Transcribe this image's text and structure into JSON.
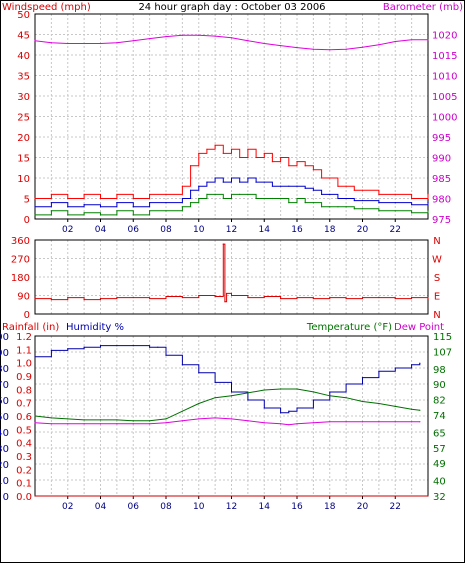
{
  "title": "24 hour graph day : October 03 2006",
  "colors": {
    "windspeed": "#ff0000",
    "gust": "#ff0000",
    "wind_avg": "#0000cc",
    "wind_low": "#008000",
    "barometer": "#e000e0",
    "direction": "#dd0000",
    "humidity": "#0000aa",
    "temperature": "#007000",
    "dewpoint": "#e000e0",
    "rainfall": "#cc0000",
    "grid": "#c8c8c8",
    "axis": "#000000"
  },
  "chart_data": [
    {
      "type": "line",
      "panel": "wind-barometer",
      "left_axis_label": "Windspeed (mph)",
      "right_axis_label": "Barometer (mb)",
      "ylim_left": [
        0,
        50
      ],
      "yticks_left": [
        "0",
        "5",
        "10",
        "15",
        "20",
        "25",
        "30",
        "35",
        "40",
        "45",
        "50"
      ],
      "ylim_right": [
        975,
        1025
      ],
      "yticks_right": [
        "975",
        "980",
        "985",
        "990",
        "995",
        "1000",
        "1005",
        "1010",
        "1015",
        "1020"
      ],
      "xlim": [
        0,
        24
      ],
      "xticks": [
        "02",
        "04",
        "06",
        "08",
        "10",
        "12",
        "14",
        "16",
        "18",
        "20",
        "22"
      ],
      "grid": true,
      "series": [
        {
          "key": "gust",
          "axis": "left",
          "color_key": "windspeed",
          "x": [
            0,
            1,
            2,
            3,
            4,
            5,
            6,
            7,
            8,
            9,
            9.5,
            10,
            10.5,
            11,
            11.5,
            12,
            12.5,
            13,
            13.5,
            14,
            14.5,
            15,
            15.5,
            16,
            16.5,
            17,
            17.5,
            18,
            18.5,
            19,
            19.5,
            20,
            21,
            22,
            23,
            24
          ],
          "values": [
            5,
            6,
            5,
            6,
            5,
            6,
            5,
            6,
            6,
            8,
            13,
            16,
            17,
            18,
            16,
            17,
            15,
            17,
            15,
            16,
            14,
            15,
            13,
            14,
            13,
            12,
            10,
            10,
            8,
            8,
            7,
            7,
            6,
            6,
            5,
            6
          ]
        },
        {
          "key": "avg",
          "axis": "left",
          "color_key": "wind_avg",
          "x": [
            0,
            1,
            2,
            3,
            4,
            5,
            6,
            7,
            8,
            9,
            9.5,
            10,
            10.5,
            11,
            11.5,
            12,
            12.5,
            13,
            13.5,
            14,
            14.5,
            15,
            15.5,
            16,
            16.5,
            17,
            17.5,
            18,
            18.5,
            19,
            19.5,
            20,
            21,
            22,
            23,
            24
          ],
          "values": [
            3,
            4,
            3,
            3.5,
            3,
            4,
            3,
            4,
            4,
            5,
            7,
            8,
            9,
            10,
            9,
            10,
            9,
            10,
            9,
            9,
            8,
            8,
            8,
            8,
            7.5,
            7,
            6,
            6,
            5,
            5,
            4.5,
            4.5,
            4,
            4,
            3.5,
            4
          ]
        },
        {
          "key": "low",
          "axis": "left",
          "color_key": "wind_low",
          "x": [
            0,
            1,
            2,
            3,
            4,
            5,
            6,
            7,
            8,
            9,
            9.5,
            10,
            10.5,
            11,
            11.5,
            12,
            12.5,
            13,
            13.5,
            14,
            14.5,
            15,
            15.5,
            16,
            16.5,
            17,
            17.5,
            18,
            18.5,
            19,
            19.5,
            20,
            21,
            22,
            23,
            24
          ],
          "values": [
            1,
            2,
            1,
            1.5,
            1,
            2,
            1,
            2,
            2,
            3,
            4,
            5,
            6,
            6,
            5,
            6,
            6,
            6,
            5,
            5,
            5,
            5,
            4,
            5,
            4,
            4,
            3,
            3,
            3,
            3,
            2.5,
            2.5,
            2,
            2,
            1.5,
            2
          ]
        },
        {
          "key": "barometer",
          "axis": "right",
          "color_key": "barometer",
          "x": [
            0,
            1,
            2,
            3,
            4,
            5,
            6,
            7,
            8,
            9,
            10,
            11,
            12,
            13,
            14,
            15,
            16,
            17,
            18,
            19,
            20,
            21,
            22,
            23,
            24
          ],
          "values": [
            1018.5,
            1018,
            1017.8,
            1017.8,
            1017.8,
            1018,
            1018.5,
            1019,
            1019.5,
            1019.8,
            1019.8,
            1019.6,
            1019.2,
            1018.5,
            1017.8,
            1017.3,
            1016.8,
            1016.4,
            1016.3,
            1016.4,
            1016.9,
            1017.5,
            1018.3,
            1018.7,
            1018.7
          ]
        }
      ]
    },
    {
      "type": "line",
      "panel": "wind-direction",
      "ylim_left": [
        0,
        360
      ],
      "yticks_left": [
        "360",
        "270",
        "180",
        "90",
        "0"
      ],
      "yticks_right": [
        "N",
        "W",
        "S",
        "E",
        "N"
      ],
      "xlim": [
        0,
        24
      ],
      "grid": true,
      "series": [
        {
          "key": "direction",
          "axis": "left",
          "color_key": "direction",
          "x": [
            0,
            1,
            2,
            3,
            4,
            5,
            6,
            7,
            8,
            9,
            10,
            11,
            11.5,
            11.6,
            11.7,
            12,
            13,
            14,
            15,
            16,
            17,
            18,
            19,
            20,
            21,
            22,
            23,
            24
          ],
          "values": [
            75,
            70,
            80,
            70,
            75,
            80,
            80,
            75,
            85,
            80,
            90,
            85,
            340,
            60,
            100,
            90,
            80,
            85,
            75,
            80,
            75,
            80,
            75,
            80,
            80,
            75,
            80,
            75
          ]
        }
      ]
    },
    {
      "type": "line",
      "panel": "rain-humidity-temperature",
      "left_axis_label_1": "Rainfall (in)",
      "left_axis_label_2": "Humidity %",
      "right_axis_label_1": "Temperature (°F)",
      "right_axis_label_2": "Dew Point",
      "ylim_humidity": [
        0,
        100
      ],
      "yticks_humidity": [
        "0",
        "10",
        "20",
        "30",
        "40",
        "50",
        "60",
        "70",
        "80",
        "90",
        "100"
      ],
      "ylim_rain": [
        0,
        1.2
      ],
      "yticks_rain": [
        "0.0",
        "0.1",
        "0.2",
        "0.3",
        "0.4",
        "0.5",
        "0.6",
        "0.7",
        "0.8",
        "0.9",
        "1.0",
        "1.1",
        "1.2"
      ],
      "ylim_temp": [
        32,
        115
      ],
      "yticks_temp": [
        "32",
        "40",
        "49",
        "57",
        "65",
        "74",
        "82",
        "90",
        "98",
        "107",
        "115"
      ],
      "xlim": [
        0,
        24
      ],
      "xticks": [
        "02",
        "04",
        "06",
        "08",
        "10",
        "12",
        "14",
        "16",
        "18",
        "20",
        "22"
      ],
      "grid": true,
      "series": [
        {
          "key": "humidity",
          "axis": "humidity",
          "color_key": "humidity",
          "x": [
            0,
            1,
            2,
            3,
            4,
            5,
            6,
            7,
            7.5,
            8,
            9,
            10,
            11,
            12,
            13,
            14,
            15,
            15.5,
            16,
            17,
            18,
            19,
            20,
            21,
            22,
            23,
            23.5
          ],
          "values": [
            87,
            91,
            92,
            93,
            94,
            94,
            94,
            93,
            93,
            88,
            82,
            77,
            71,
            65,
            60,
            55,
            52,
            53,
            55,
            60,
            65,
            70,
            74,
            78,
            80,
            82,
            83
          ]
        },
        {
          "key": "temperature",
          "axis": "temp",
          "color_key": "temperature",
          "x": [
            0,
            1,
            2,
            3,
            4,
            5,
            6,
            7,
            8,
            9,
            10,
            11,
            12,
            13,
            14,
            15,
            16,
            17,
            18,
            19,
            20,
            21,
            22,
            23,
            23.5
          ],
          "values": [
            73.5,
            72.5,
            72,
            71.5,
            71.5,
            71.5,
            71,
            71,
            72,
            76,
            80,
            83,
            84,
            85.5,
            87,
            87.5,
            87.5,
            86,
            84,
            83,
            81,
            80,
            78.5,
            77,
            76.5
          ]
        },
        {
          "key": "dewpoint",
          "axis": "temp",
          "color_key": "dewpoint",
          "x": [
            0,
            1,
            2,
            3,
            4,
            5,
            6,
            7,
            8,
            9,
            10,
            11,
            12,
            13,
            14,
            15,
            15.5,
            16,
            17,
            18,
            19,
            20,
            21,
            22,
            23,
            23.5
          ],
          "values": [
            70,
            69.5,
            69.5,
            69.5,
            69.5,
            69.5,
            69.5,
            69.5,
            70,
            71,
            72,
            72.5,
            72,
            71,
            70,
            69.5,
            69,
            69.5,
            70,
            70.5,
            70.5,
            70.5,
            70.5,
            70.5,
            70.5,
            70.5
          ]
        },
        {
          "key": "rainfall",
          "axis": "rain",
          "color_key": "rainfall",
          "x": [
            0,
            24
          ],
          "values": [
            0,
            0
          ]
        }
      ]
    }
  ]
}
